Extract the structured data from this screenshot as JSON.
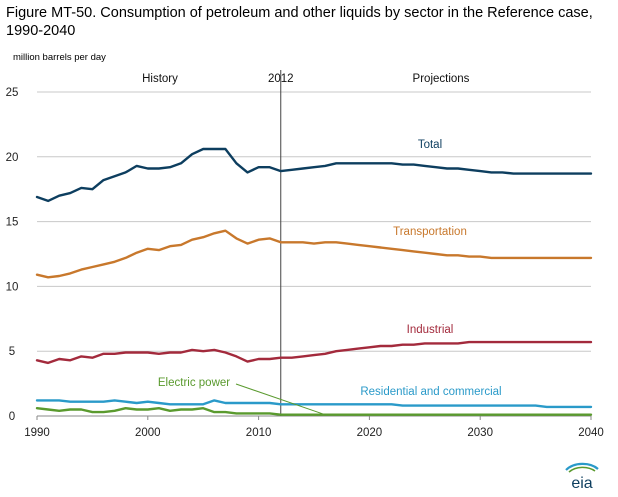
{
  "title": "Figure MT-50. Consumption of petroleum and other liquids by sector in the Reference case, 1990-2040",
  "units": "million barrels per day",
  "logo_text": "eia",
  "colors": {
    "total": "#0d3e5f",
    "transportation": "#c8782c",
    "industrial": "#a32a3c",
    "residential": "#2a9ac9",
    "electric": "#5a9a2e",
    "grid": "#c8c8c8",
    "divider": "#444444"
  },
  "chart_data": {
    "type": "line",
    "xlabel": "",
    "ylabel": "million barrels per day",
    "xlim": [
      1990,
      2040
    ],
    "ylim": [
      0,
      25
    ],
    "x_ticks": [
      1990,
      2000,
      2010,
      2020,
      2030,
      2040
    ],
    "y_ticks": [
      0,
      5,
      10,
      15,
      20,
      25
    ],
    "grid": "horizontal",
    "divider_year": 2012,
    "segment_labels": {
      "history": "History",
      "divider": "2012",
      "projections": "Projections"
    },
    "x": [
      1990,
      1991,
      1992,
      1993,
      1994,
      1995,
      1996,
      1997,
      1998,
      1999,
      2000,
      2001,
      2002,
      2003,
      2004,
      2005,
      2006,
      2007,
      2008,
      2009,
      2010,
      2011,
      2012,
      2013,
      2014,
      2015,
      2016,
      2017,
      2018,
      2019,
      2020,
      2021,
      2022,
      2023,
      2024,
      2025,
      2026,
      2027,
      2028,
      2029,
      2030,
      2031,
      2032,
      2033,
      2034,
      2035,
      2036,
      2037,
      2038,
      2039,
      2040
    ],
    "series": [
      {
        "name": "Total",
        "key": "total",
        "values": [
          16.9,
          16.6,
          17.0,
          17.2,
          17.6,
          17.5,
          18.2,
          18.5,
          18.8,
          19.3,
          19.1,
          19.1,
          19.2,
          19.5,
          20.2,
          20.6,
          20.6,
          20.6,
          19.5,
          18.8,
          19.2,
          19.2,
          18.9,
          19.0,
          19.1,
          19.2,
          19.3,
          19.5,
          19.5,
          19.5,
          19.5,
          19.5,
          19.5,
          19.4,
          19.4,
          19.3,
          19.2,
          19.1,
          19.1,
          19.0,
          18.9,
          18.8,
          18.8,
          18.7,
          18.7,
          18.7,
          18.7,
          18.7,
          18.7,
          18.7,
          18.7
        ]
      },
      {
        "name": "Transportation",
        "key": "transportation",
        "values": [
          10.9,
          10.7,
          10.8,
          11.0,
          11.3,
          11.5,
          11.7,
          11.9,
          12.2,
          12.6,
          12.9,
          12.8,
          13.1,
          13.2,
          13.6,
          13.8,
          14.1,
          14.3,
          13.7,
          13.3,
          13.6,
          13.7,
          13.4,
          13.4,
          13.4,
          13.3,
          13.4,
          13.4,
          13.3,
          13.2,
          13.1,
          13.0,
          12.9,
          12.8,
          12.7,
          12.6,
          12.5,
          12.4,
          12.4,
          12.3,
          12.3,
          12.2,
          12.2,
          12.2,
          12.2,
          12.2,
          12.2,
          12.2,
          12.2,
          12.2,
          12.2
        ]
      },
      {
        "name": "Industrial",
        "key": "industrial",
        "values": [
          4.3,
          4.1,
          4.4,
          4.3,
          4.6,
          4.5,
          4.8,
          4.8,
          4.9,
          4.9,
          4.9,
          4.8,
          4.9,
          4.9,
          5.1,
          5.0,
          5.1,
          4.9,
          4.6,
          4.2,
          4.4,
          4.4,
          4.5,
          4.5,
          4.6,
          4.7,
          4.8,
          5.0,
          5.1,
          5.2,
          5.3,
          5.4,
          5.4,
          5.5,
          5.5,
          5.6,
          5.6,
          5.6,
          5.6,
          5.7,
          5.7,
          5.7,
          5.7,
          5.7,
          5.7,
          5.7,
          5.7,
          5.7,
          5.7,
          5.7,
          5.7
        ]
      },
      {
        "name": "Residential and commercial",
        "key": "residential",
        "values": [
          1.2,
          1.2,
          1.2,
          1.1,
          1.1,
          1.1,
          1.1,
          1.2,
          1.1,
          1.0,
          1.1,
          1.0,
          0.9,
          0.9,
          0.9,
          0.9,
          1.2,
          1.0,
          1.0,
          1.0,
          1.0,
          1.0,
          0.9,
          0.9,
          0.9,
          0.9,
          0.9,
          0.9,
          0.9,
          0.9,
          0.9,
          0.9,
          0.9,
          0.8,
          0.8,
          0.8,
          0.8,
          0.8,
          0.8,
          0.8,
          0.8,
          0.8,
          0.8,
          0.8,
          0.8,
          0.8,
          0.7,
          0.7,
          0.7,
          0.7,
          0.7
        ]
      },
      {
        "name": "Electric power",
        "key": "electric",
        "values": [
          0.6,
          0.5,
          0.4,
          0.5,
          0.5,
          0.3,
          0.3,
          0.4,
          0.6,
          0.5,
          0.5,
          0.6,
          0.4,
          0.5,
          0.5,
          0.6,
          0.3,
          0.3,
          0.2,
          0.2,
          0.2,
          0.2,
          0.1,
          0.1,
          0.1,
          0.1,
          0.1,
          0.1,
          0.1,
          0.1,
          0.1,
          0.1,
          0.1,
          0.1,
          0.1,
          0.1,
          0.1,
          0.1,
          0.1,
          0.1,
          0.1,
          0.1,
          0.1,
          0.1,
          0.1,
          0.1,
          0.1,
          0.1,
          0.1,
          0.1,
          0.1
        ]
      }
    ],
    "annotations": [
      "Total",
      "Transportation",
      "Industrial",
      "Residential and commercial",
      "Electric power"
    ]
  }
}
